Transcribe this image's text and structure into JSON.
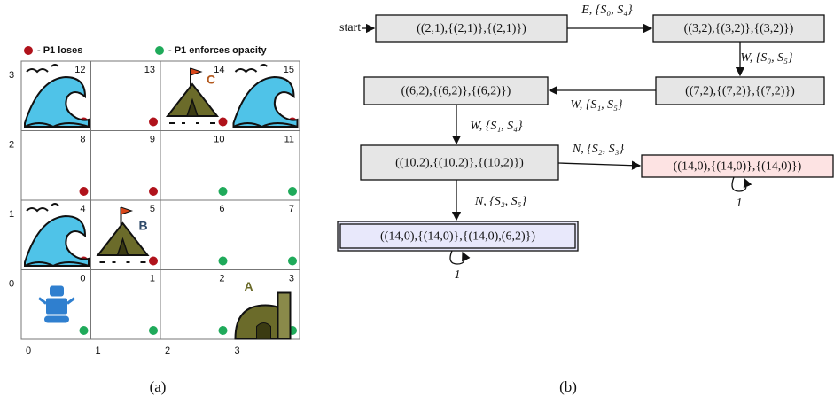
{
  "legend": {
    "loses": "- P1 loses",
    "opacity": "- P1 enforces opacity"
  },
  "grid": {
    "row_labels": [
      "3",
      "2",
      "1",
      "0"
    ],
    "col_labels": [
      "0",
      "1",
      "2",
      "3"
    ],
    "cells": [
      [
        "12",
        "13",
        "14",
        "15"
      ],
      [
        "8",
        "9",
        "10",
        "11"
      ],
      [
        "4",
        "5",
        "6",
        "7"
      ],
      [
        "0",
        "1",
        "2",
        "3"
      ]
    ],
    "markers": {
      "A": "A",
      "B": "B",
      "C": "C"
    }
  },
  "automaton": {
    "start": "start",
    "nodes": [
      "((2,1),{(2,1)},{(2,1)})",
      "((3,2),{(3,2)},{(3,2)})",
      "((7,2),{(7,2)},{(7,2)})",
      "((6,2),{(6,2)},{(6,2)})",
      "((10,2),{(10,2)},{(10,2)})",
      "((14,0),{(14,0)},{(14,0)})",
      "((14,0),{(14,0)},{(14,0),(6,2)})"
    ],
    "edges": [
      "E, {S₀, S₄}",
      "W, {S₀, S₅}",
      "W, {S₁, S₅}",
      "W, {S₁, S₄}",
      "N, {S₂, S₃}",
      "N, {S₂, S₅}",
      "1",
      "1"
    ]
  },
  "captions": [
    "(a)",
    "(b)"
  ]
}
